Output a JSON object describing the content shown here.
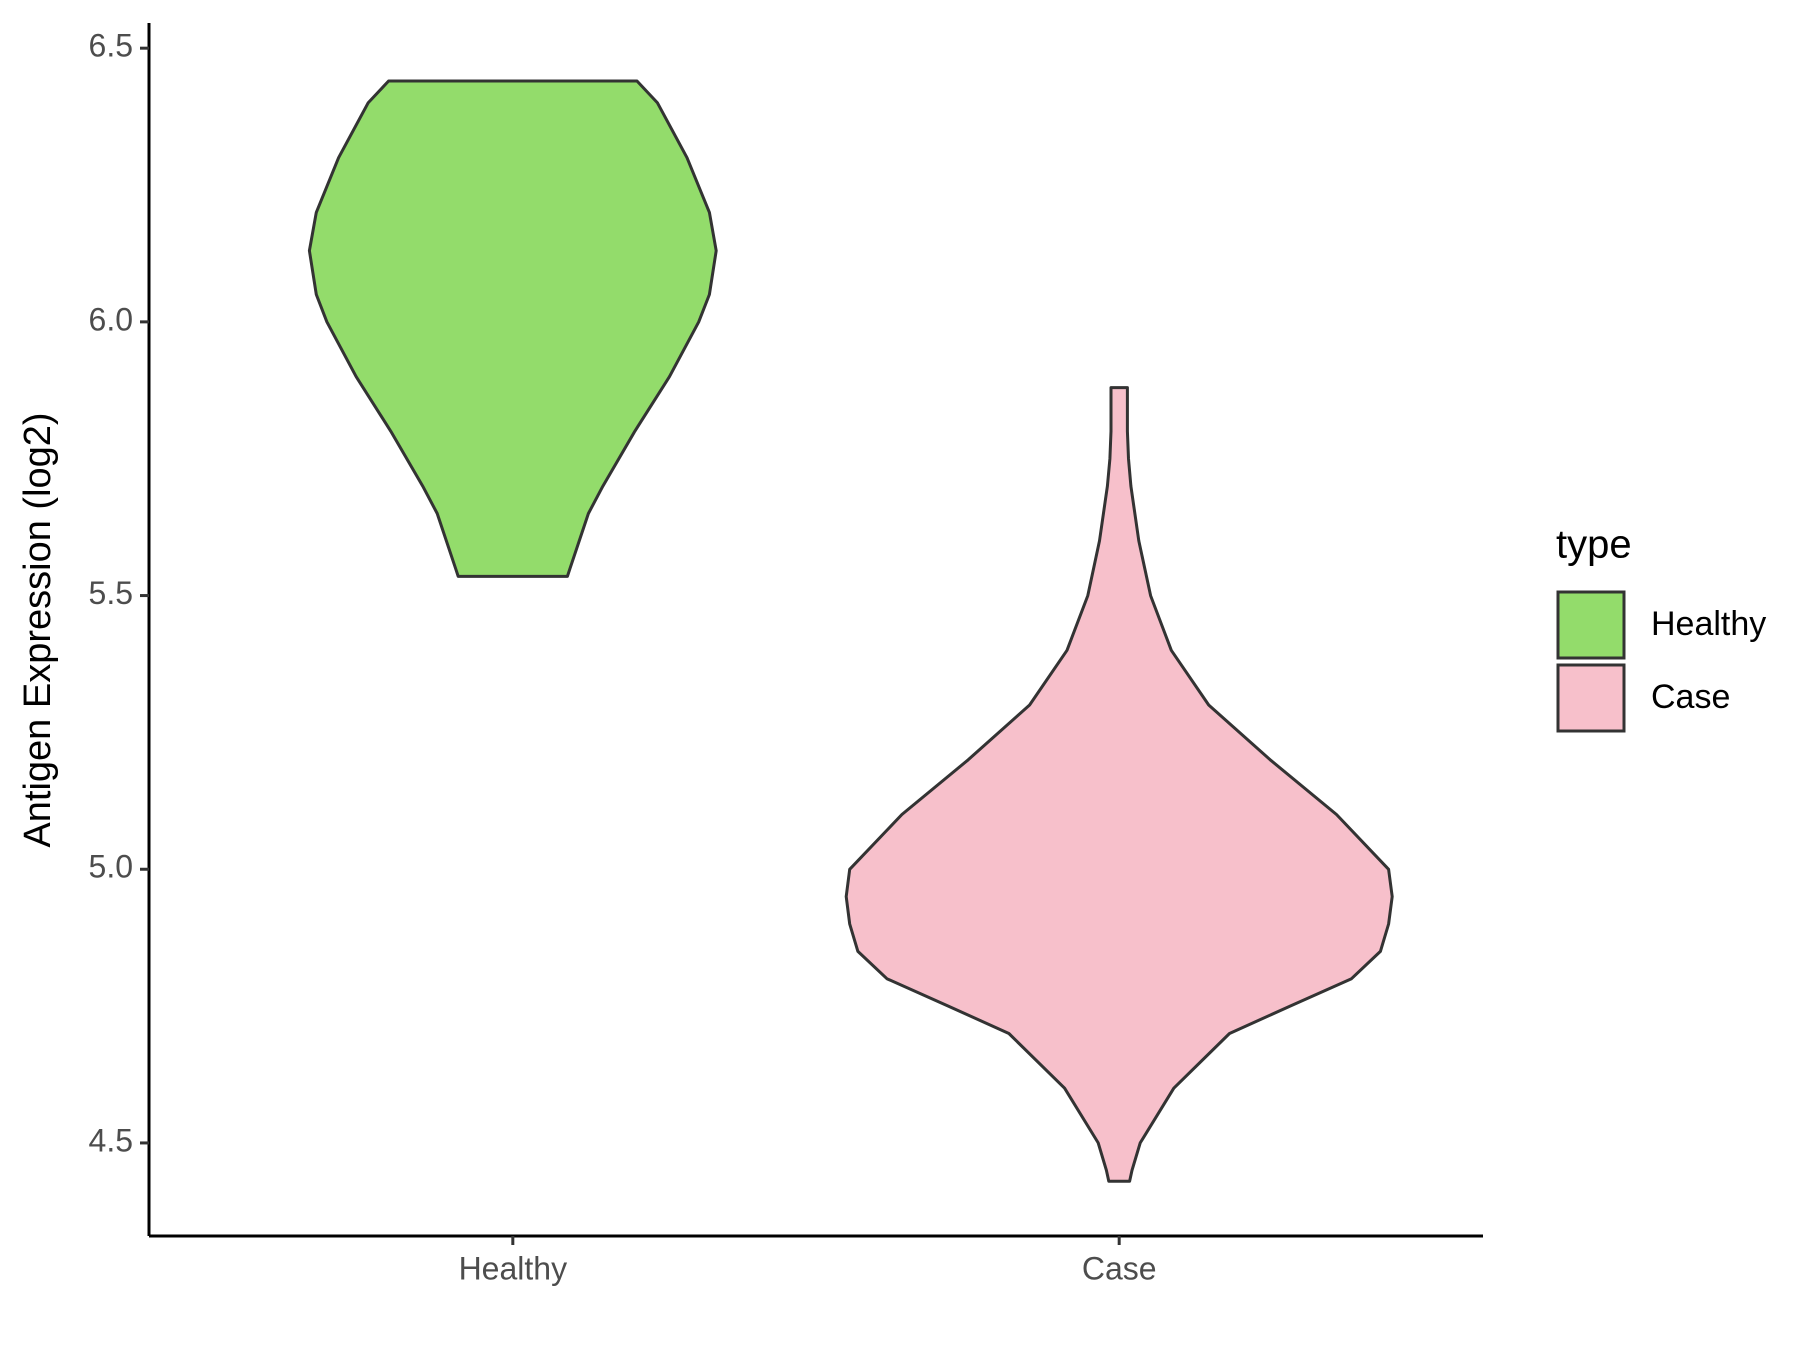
{
  "chart_data": {
    "type": "violin",
    "y_label": "Antigen Expression (log2)",
    "categories": [
      "Healthy",
      "Case"
    ],
    "legend_title": "type",
    "legend_position": "right",
    "ylim": [
      4.33,
      6.546
    ],
    "yticks": [
      4.5,
      {
        "value": 5.0,
        "label": "5.0"
      },
      5.5,
      {
        "value": 6.0,
        "label": "6.0"
      },
      6.5
    ],
    "series": [
      {
        "name": "Healthy",
        "color": "#93dc6b",
        "y": [
          6.44,
          6.4,
          6.3,
          6.2,
          6.13,
          6.05,
          6.0,
          5.9,
          5.8,
          5.7,
          5.65,
          5.55,
          5.535
        ],
        "widths": [
          0.455,
          0.53,
          0.638,
          0.72,
          0.745,
          0.72,
          0.681,
          0.574,
          0.447,
          0.33,
          0.277,
          0.21,
          0.2
        ]
      },
      {
        "name": "Case",
        "color": "#f7c0cb",
        "y": [
          5.88,
          5.8,
          5.75,
          5.7,
          5.6,
          5.5,
          5.4,
          5.3,
          5.2,
          5.1,
          5.0,
          4.95,
          4.9,
          4.85,
          4.8,
          4.75,
          4.7,
          4.6,
          4.5,
          4.45,
          4.43
        ],
        "widths": [
          0.03,
          0.03,
          0.034,
          0.043,
          0.072,
          0.115,
          0.191,
          0.328,
          0.553,
          0.796,
          0.987,
          1.0,
          0.987,
          0.957,
          0.851,
          0.626,
          0.404,
          0.2,
          0.077,
          0.047,
          0.038
        ]
      }
    ]
  }
}
